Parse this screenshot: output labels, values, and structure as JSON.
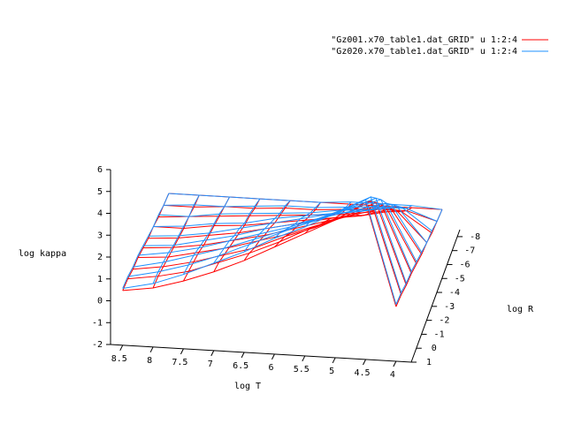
{
  "chart_data": {
    "type": "surface",
    "xlabel": "log T",
    "ylabel": "log R",
    "zlabel": "log kappa",
    "x": [
      4,
      4.5,
      5,
      5.5,
      6,
      6.5,
      7,
      7.5,
      8,
      8.5
    ],
    "y": [
      1,
      0,
      -1,
      -2,
      -3,
      -4,
      -5,
      -6,
      -7,
      -8
    ],
    "xlim": [
      3.75,
      8.7
    ],
    "ylim": [
      1,
      -8.5
    ],
    "zlim": [
      -2,
      6
    ],
    "xticks": [
      8.5,
      8,
      7.5,
      7,
      6.5,
      6,
      5.5,
      5,
      4.5,
      4
    ],
    "yticks": [
      1,
      0,
      -1,
      -2,
      -3,
      -4,
      -5,
      -6,
      -7,
      -8
    ],
    "zticks": [
      -2,
      -1,
      0,
      1,
      2,
      3,
      4,
      5,
      6
    ],
    "legend": "top-right",
    "series": [
      {
        "name": "\"Gz001.x70_table1.dat_GRID\" u 1:2:4",
        "color": "#ff0000",
        "values": [
          [
            0.5,
            5.2,
            4.3,
            3.6,
            2.9,
            2.2,
            1.6,
            1.1,
            0.7,
            0.5
          ],
          [
            0.4,
            4.6,
            3.8,
            3.2,
            2.5,
            1.9,
            1.4,
            0.9,
            0.6,
            0.4
          ],
          [
            0.2,
            3.9,
            3.2,
            2.6,
            2.1,
            1.5,
            1.1,
            0.7,
            0.4,
            0.2
          ],
          [
            0.1,
            3.2,
            2.6,
            2.1,
            1.6,
            1.2,
            0.8,
            0.5,
            0.2,
            0.1
          ],
          [
            -0.1,
            2.4,
            2.0,
            1.6,
            1.2,
            0.8,
            0.5,
            0.2,
            0.0,
            -0.1
          ],
          [
            -0.3,
            1.7,
            1.3,
            1.1,
            0.8,
            0.5,
            0.2,
            0.0,
            -0.2,
            -0.3
          ],
          [
            -0.4,
            1.0,
            0.7,
            0.5,
            0.3,
            0.1,
            -0.1,
            -0.2,
            -0.4,
            -0.4
          ],
          [
            -0.6,
            0.3,
            0.2,
            0.0,
            -0.1,
            -0.2,
            -0.3,
            -0.4,
            -0.5,
            -0.6
          ],
          [
            -0.7,
            -0.3,
            -0.3,
            -0.4,
            -0.5,
            -0.5,
            -0.6,
            -0.6,
            -0.7,
            -0.7
          ],
          [
            -0.8,
            -0.8,
            -0.8,
            -0.8,
            -0.8,
            -0.8,
            -0.8,
            -0.8,
            -0.8,
            -0.8
          ]
        ]
      },
      {
        "name": "\"Gz020.x70_table1.dat_GRID\" u 1:2:4",
        "color": "#1e90ff",
        "values": [
          [
            0.6,
            5.3,
            4.6,
            3.9,
            3.3,
            2.6,
            2.0,
            1.4,
            0.9,
            0.6
          ],
          [
            0.5,
            4.8,
            4.1,
            3.5,
            2.9,
            2.3,
            1.7,
            1.2,
            0.8,
            0.5
          ],
          [
            0.3,
            4.1,
            3.5,
            2.9,
            2.4,
            1.9,
            1.4,
            1.0,
            0.6,
            0.3
          ],
          [
            0.2,
            3.4,
            2.9,
            2.4,
            1.9,
            1.5,
            1.1,
            0.7,
            0.4,
            0.2
          ],
          [
            0.0,
            2.6,
            2.2,
            1.8,
            1.4,
            1.1,
            0.7,
            0.4,
            0.1,
            0.0
          ],
          [
            -0.2,
            1.9,
            1.5,
            1.3,
            1.0,
            0.7,
            0.4,
            0.1,
            -0.1,
            -0.2
          ],
          [
            -0.4,
            1.2,
            0.9,
            0.7,
            0.5,
            0.3,
            0.0,
            -0.1,
            -0.3,
            -0.4
          ],
          [
            -0.5,
            0.5,
            0.3,
            0.2,
            0.0,
            -0.1,
            -0.2,
            -0.3,
            -0.5,
            -0.5
          ],
          [
            -0.7,
            -0.2,
            -0.2,
            -0.3,
            -0.4,
            -0.4,
            -0.5,
            -0.6,
            -0.6,
            -0.7
          ],
          [
            -0.8,
            -0.7,
            -0.7,
            -0.7,
            -0.8,
            -0.8,
            -0.8,
            -0.8,
            -0.8,
            -0.8
          ]
        ]
      }
    ]
  }
}
